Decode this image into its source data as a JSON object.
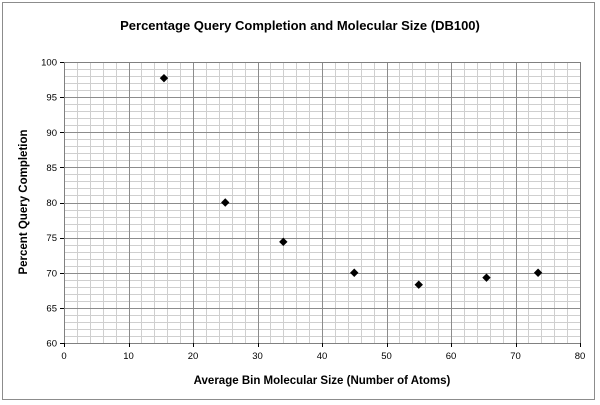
{
  "chart_data": {
    "type": "scatter",
    "title": "Percentage Query Completion and Molecular Size (DB100)",
    "xlabel": "Average Bin Molecular Size (Number of Atoms)",
    "ylabel": "Percent Query Completion",
    "xlim": [
      0,
      80
    ],
    "ylim": [
      60,
      100
    ],
    "x_major_step": 10,
    "y_major_step": 5,
    "x_minor_step": 2,
    "y_minor_step": 1,
    "grid": true,
    "x_ticks": [
      "0",
      "10",
      "20",
      "30",
      "40",
      "50",
      "60",
      "70",
      "80"
    ],
    "y_ticks": [
      "60",
      "65",
      "70",
      "75",
      "80",
      "85",
      "90",
      "95",
      "100"
    ],
    "points": [
      {
        "x": 15.5,
        "y": 97.7
      },
      {
        "x": 25.0,
        "y": 80.0
      },
      {
        "x": 34.0,
        "y": 74.4
      },
      {
        "x": 45.0,
        "y": 70.0
      },
      {
        "x": 55.0,
        "y": 68.3
      },
      {
        "x": 65.5,
        "y": 69.3
      },
      {
        "x": 73.5,
        "y": 70.0
      }
    ],
    "marker": "diamond",
    "colors": {
      "marker": "#000000",
      "major_grid": "#8c8c8c",
      "minor_grid": "#cfcfcf",
      "plot_bg": "#ffffff"
    }
  }
}
